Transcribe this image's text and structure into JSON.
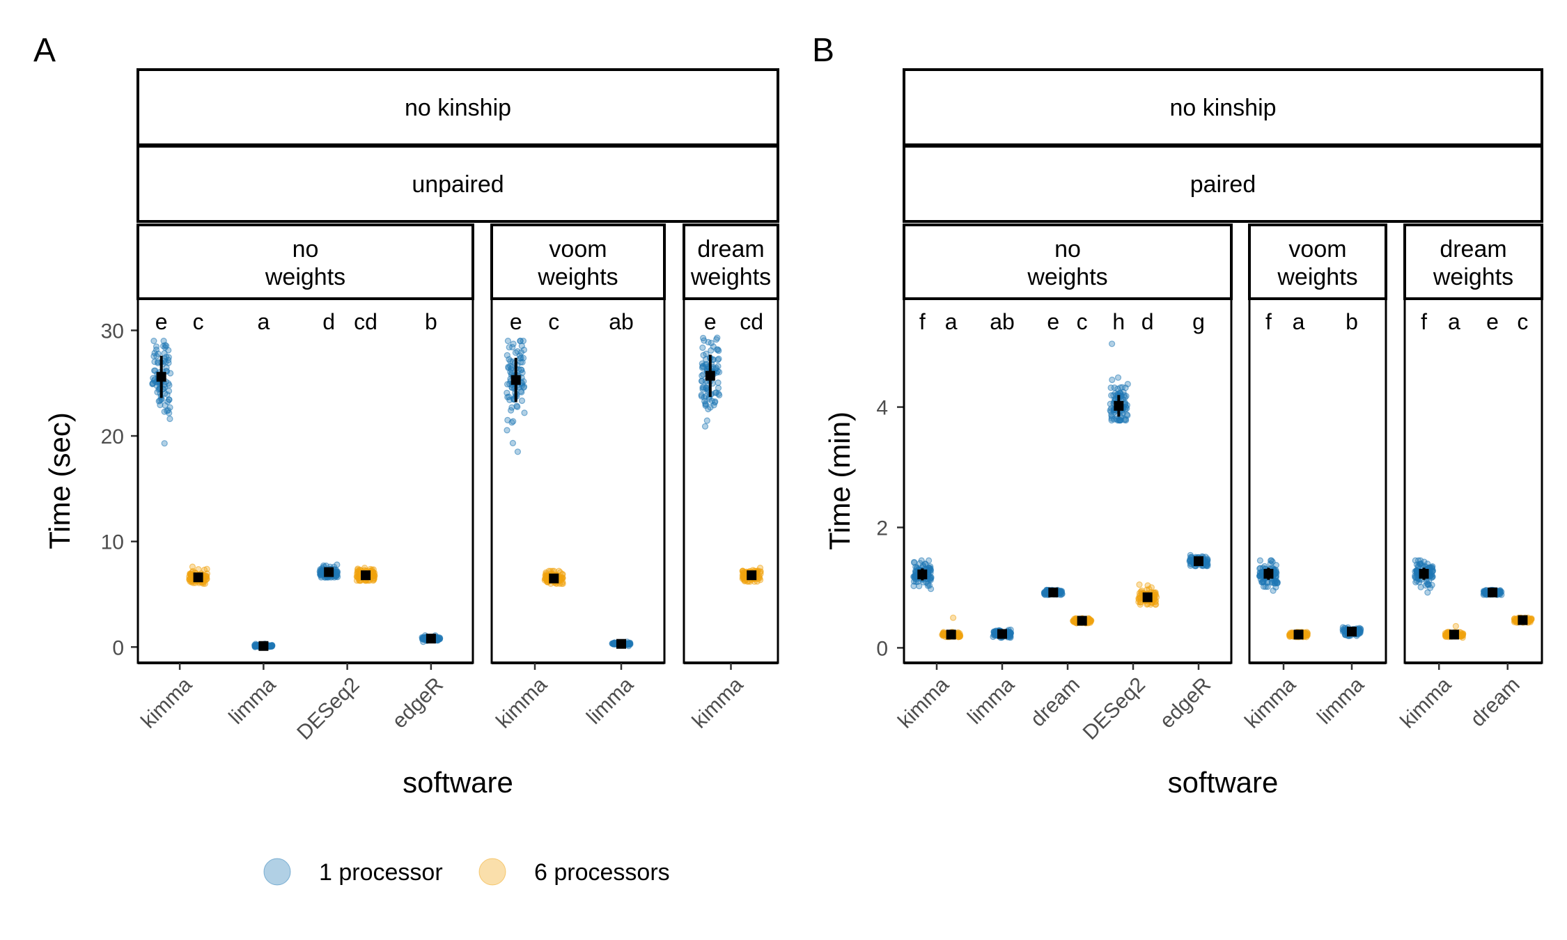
{
  "colors": {
    "one_processor": "#1F77B4",
    "six_processors": "#F0A20E",
    "summary": "#000000"
  },
  "legend": {
    "items": [
      {
        "label": "1 processor",
        "color_key": "one_processor"
      },
      {
        "label": "6 processors",
        "color_key": "six_processors"
      }
    ]
  },
  "chart_data": [
    {
      "type": "scatter",
      "panel_tag": "A",
      "strip_1": "no kinship",
      "strip_2": "unpaired",
      "xlabel": "software",
      "ylabel": "Time (sec)",
      "ylim": [
        -1.5,
        33
      ],
      "y_ticks": [
        0,
        10,
        20,
        30
      ],
      "facets": [
        {
          "label": "no\nweights",
          "categories": [
            "kimma",
            "limma",
            "DESeq2",
            "edgeR"
          ],
          "groups": [
            {
              "category": "kimma",
              "processors": 1,
              "mean": 25.6,
              "sd": 2.0,
              "min": 19.3,
              "max": 29.0,
              "letter": "e"
            },
            {
              "category": "kimma",
              "processors": 6,
              "mean": 6.6,
              "sd": 0.3,
              "min": 6.0,
              "max": 7.6,
              "letter": "c"
            },
            {
              "category": "limma",
              "processors": 1,
              "mean": 0.1,
              "sd": 0.05,
              "min": 0.0,
              "max": 0.3,
              "letter": "a"
            },
            {
              "category": "DESeq2",
              "processors": 1,
              "mean": 7.1,
              "sd": 0.3,
              "min": 6.6,
              "max": 7.8,
              "letter": "d"
            },
            {
              "category": "DESeq2",
              "processors": 6,
              "mean": 6.8,
              "sd": 0.3,
              "min": 6.3,
              "max": 7.5,
              "letter": "cd"
            },
            {
              "category": "edgeR",
              "processors": 1,
              "mean": 0.8,
              "sd": 0.1,
              "min": 0.5,
              "max": 1.1,
              "letter": "b"
            }
          ]
        },
        {
          "label": "voom\nweights",
          "categories": [
            "kimma",
            "limma"
          ],
          "groups": [
            {
              "category": "kimma",
              "processors": 1,
              "mean": 25.3,
              "sd": 2.1,
              "min": 18.5,
              "max": 29.0,
              "letter": "e"
            },
            {
              "category": "kimma",
              "processors": 6,
              "mean": 6.5,
              "sd": 0.3,
              "min": 6.0,
              "max": 7.2,
              "letter": "c"
            },
            {
              "category": "limma",
              "processors": 1,
              "mean": 0.3,
              "sd": 0.05,
              "min": 0.1,
              "max": 0.5,
              "letter": "ab"
            }
          ]
        },
        {
          "label": "dream\nweights",
          "categories": [
            "kimma"
          ],
          "groups": [
            {
              "category": "kimma",
              "processors": 1,
              "mean": 25.7,
              "sd": 2.0,
              "min": 20.9,
              "max": 29.3,
              "letter": "e"
            },
            {
              "category": "kimma",
              "processors": 6,
              "mean": 6.8,
              "sd": 0.3,
              "min": 6.2,
              "max": 7.5,
              "letter": "cd"
            }
          ]
        }
      ]
    },
    {
      "type": "scatter",
      "panel_tag": "B",
      "strip_1": "no kinship",
      "strip_2": "paired",
      "xlabel": "software",
      "ylabel": "Time (min)",
      "ylim": [
        -0.25,
        5.8
      ],
      "y_ticks": [
        0,
        2,
        4
      ],
      "facets": [
        {
          "label": "no\nweights",
          "categories": [
            "kimma",
            "limma",
            "dream",
            "DESeq2",
            "edgeR"
          ],
          "groups": [
            {
              "category": "kimma",
              "processors": 1,
              "mean": 1.22,
              "sd": 0.1,
              "min": 0.98,
              "max": 1.45,
              "letter": "f"
            },
            {
              "category": "kimma",
              "processors": 6,
              "mean": 0.22,
              "sd": 0.02,
              "min": 0.18,
              "max": 0.5,
              "letter": "a"
            },
            {
              "category": "limma",
              "processors": 1,
              "mean": 0.23,
              "sd": 0.03,
              "min": 0.17,
              "max": 0.3,
              "letter": "ab"
            },
            {
              "category": "dream",
              "processors": 1,
              "mean": 0.92,
              "sd": 0.02,
              "min": 0.88,
              "max": 0.96,
              "letter": "e"
            },
            {
              "category": "dream",
              "processors": 6,
              "mean": 0.45,
              "sd": 0.02,
              "min": 0.41,
              "max": 0.49,
              "letter": "c"
            },
            {
              "category": "DESeq2",
              "processors": 1,
              "mean": 4.02,
              "sd": 0.18,
              "min": 3.78,
              "max": 5.05,
              "letter": "h"
            },
            {
              "category": "DESeq2",
              "processors": 6,
              "mean": 0.84,
              "sd": 0.06,
              "min": 0.72,
              "max": 1.05,
              "letter": "d"
            },
            {
              "category": "edgeR",
              "processors": 1,
              "mean": 1.44,
              "sd": 0.04,
              "min": 1.36,
              "max": 1.54,
              "letter": "g"
            }
          ]
        },
        {
          "label": "voom\nweights",
          "categories": [
            "kimma",
            "limma"
          ],
          "groups": [
            {
              "category": "kimma",
              "processors": 1,
              "mean": 1.23,
              "sd": 0.1,
              "min": 0.95,
              "max": 1.45,
              "letter": "f"
            },
            {
              "category": "kimma",
              "processors": 6,
              "mean": 0.22,
              "sd": 0.02,
              "min": 0.18,
              "max": 0.26,
              "letter": "a"
            },
            {
              "category": "limma",
              "processors": 1,
              "mean": 0.27,
              "sd": 0.03,
              "min": 0.2,
              "max": 0.34,
              "letter": "b"
            }
          ]
        },
        {
          "label": "dream\nweights",
          "categories": [
            "kimma",
            "dream"
          ],
          "groups": [
            {
              "category": "kimma",
              "processors": 1,
              "mean": 1.23,
              "sd": 0.1,
              "min": 0.92,
              "max": 1.45,
              "letter": "f"
            },
            {
              "category": "kimma",
              "processors": 6,
              "mean": 0.22,
              "sd": 0.02,
              "min": 0.17,
              "max": 0.36,
              "letter": "a"
            },
            {
              "category": "dream",
              "processors": 1,
              "mean": 0.92,
              "sd": 0.02,
              "min": 0.88,
              "max": 0.96,
              "letter": "e"
            },
            {
              "category": "dream",
              "processors": 6,
              "mean": 0.46,
              "sd": 0.02,
              "min": 0.42,
              "max": 0.5,
              "letter": "c"
            }
          ]
        }
      ]
    }
  ]
}
